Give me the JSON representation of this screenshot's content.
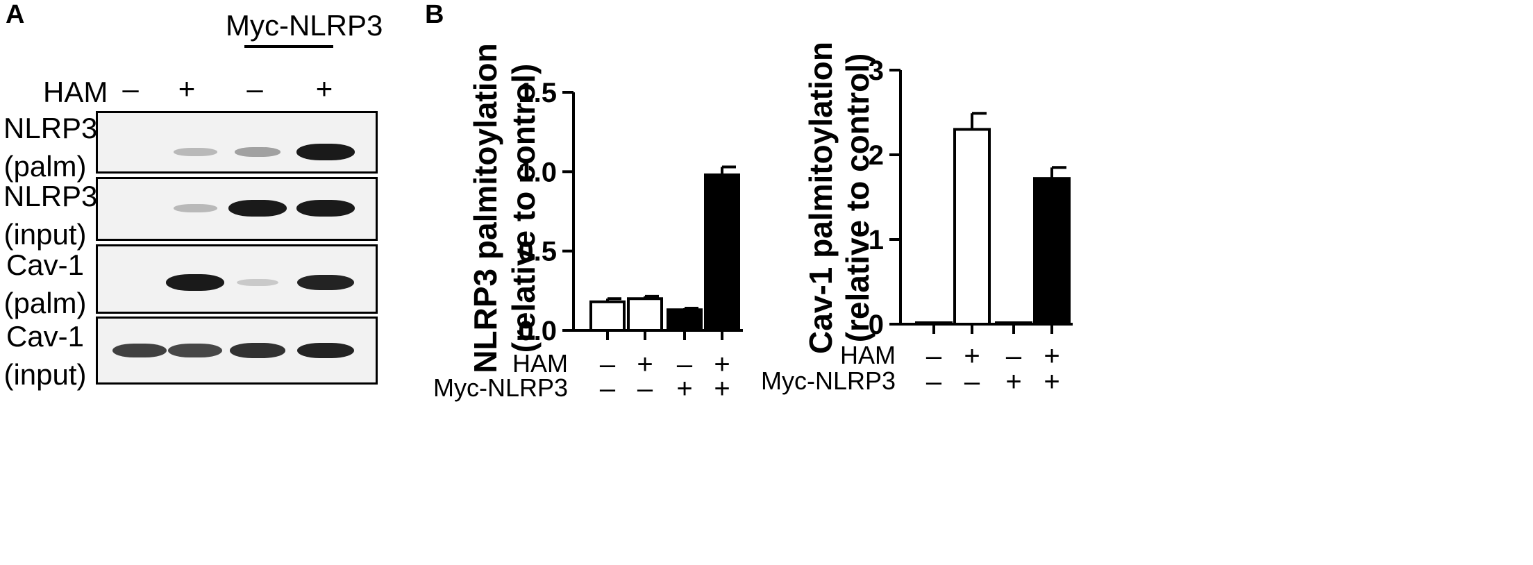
{
  "panelA": {
    "letter": "A",
    "group_label": "Myc-NLRP3",
    "treatment_label": "HAM",
    "lane_signs": [
      "–",
      "+",
      "–",
      "+"
    ],
    "rows": [
      {
        "line1": "NLRP3",
        "line2": "(palm)",
        "bands": [
          0,
          0.12,
          0.25,
          0.95
        ]
      },
      {
        "line1": "NLRP3",
        "line2": "(input)",
        "bands": [
          0,
          0.12,
          0.95,
          0.95
        ]
      },
      {
        "line1": "Cav-1",
        "line2": "(palm)",
        "bands": [
          0,
          0.95,
          0.03,
          0.9
        ]
      },
      {
        "line1": "Cav-1",
        "line2": "(input)",
        "bands": [
          0.75,
          0.72,
          0.82,
          0.9
        ]
      }
    ]
  },
  "panelB": {
    "letter": "B",
    "row_labels": {
      "ham": "HAM",
      "myc": "Myc-NLRP3"
    },
    "ham_signs": [
      "–",
      "+",
      "–",
      "+"
    ],
    "myc_signs": [
      "–",
      "–",
      "+",
      "+"
    ]
  },
  "chart_data": [
    {
      "type": "bar",
      "ylabel_line1": "NLRP3 palmitoylation",
      "ylabel_line2": "(relative to control)",
      "categories": [
        "HAM– / Myc-NLRP3–",
        "HAM+ / Myc-NLRP3–",
        "HAM– / Myc-NLRP3+",
        "HAM+ / Myc-NLRP3+"
      ],
      "values": [
        0.18,
        0.2,
        0.13,
        0.98
      ],
      "errors": [
        0.02,
        0.015,
        0.01,
        0.05
      ],
      "fill": [
        "white",
        "white",
        "black",
        "black"
      ],
      "ylim": [
        0,
        1.5
      ],
      "yticks": [
        "0.0",
        "0.5",
        "1.0",
        "1.5"
      ],
      "ytick_values": [
        0,
        0.5,
        1.0,
        1.5
      ]
    },
    {
      "type": "bar",
      "ylabel_line1": "Cav-1 palmitoylation",
      "ylabel_line2": "(relative to control)",
      "categories": [
        "HAM– / Myc-NLRP3–",
        "HAM+ / Myc-NLRP3–",
        "HAM– / Myc-NLRP3+",
        "HAM+ / Myc-NLRP3+"
      ],
      "values": [
        0.01,
        2.3,
        0.0,
        1.72
      ],
      "errors": [
        0,
        0.19,
        0,
        0.13
      ],
      "fill": [
        "white",
        "white",
        "black",
        "black"
      ],
      "ylim": [
        0,
        3
      ],
      "yticks": [
        "0",
        "1",
        "2",
        "3"
      ],
      "ytick_values": [
        0,
        1,
        2,
        3
      ]
    }
  ],
  "colors": {
    "ink": "#000000",
    "band": "#111111",
    "blot_bg": "#f2f2f2"
  }
}
